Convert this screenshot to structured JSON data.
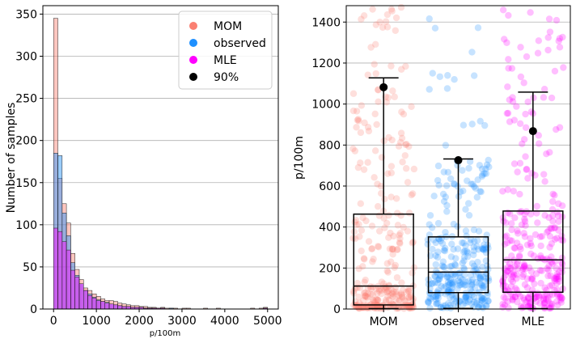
{
  "chart_data": [
    {
      "type": "histogram",
      "title": "",
      "xlabel": "p/100m",
      "ylabel": "Number of samples",
      "xlim": [
        -250,
        5250
      ],
      "ylim": [
        0,
        360
      ],
      "xticks": [
        0,
        1000,
        2000,
        3000,
        4000,
        5000
      ],
      "yticks": [
        0,
        50,
        100,
        150,
        200,
        250,
        300,
        350
      ],
      "grid": "y",
      "legend_position": "top-right",
      "bin_width": 100,
      "bin_starts": [
        0,
        100,
        200,
        300,
        400,
        500,
        600,
        700,
        800,
        900,
        1000,
        1100,
        1200,
        1300,
        1400,
        1500,
        1600,
        1700,
        1800,
        1900,
        2000,
        2100,
        2200,
        2300,
        2400,
        2500,
        2600,
        2700,
        2800,
        2900,
        3000,
        3100,
        3200,
        3300,
        3400,
        3500,
        3600,
        3700,
        3800,
        3900,
        4000,
        4100,
        4200,
        4300,
        4400,
        4500,
        4600,
        4700,
        4800,
        4900
      ],
      "series": [
        {
          "name": "MOM",
          "color": "#fa8072",
          "values": [
            345,
            155,
            125,
            102,
            66,
            47,
            35,
            25,
            22,
            18,
            15,
            12,
            10,
            10,
            9,
            7,
            6,
            5,
            4,
            4,
            3,
            3,
            2,
            2,
            1,
            2,
            1,
            1,
            1,
            0,
            1,
            1,
            0,
            0,
            0,
            1,
            0,
            0,
            1,
            0,
            0,
            0,
            0,
            0,
            0,
            0,
            1,
            0,
            1,
            2
          ]
        },
        {
          "name": "observed",
          "color": "#1e90ff",
          "values": [
            185,
            182,
            114,
            87,
            55,
            40,
            30,
            22,
            18,
            14,
            11,
            9,
            8,
            6,
            5,
            4,
            3,
            3,
            2,
            2,
            2,
            1,
            1,
            1,
            0,
            1,
            0,
            1,
            0,
            0,
            0,
            0,
            0,
            0,
            0,
            0,
            0,
            0,
            0,
            0,
            0,
            0,
            0,
            0,
            0,
            0,
            0,
            0,
            0,
            1
          ]
        },
        {
          "name": "MLE",
          "color": "#ff00ff",
          "values": [
            96,
            92,
            80,
            70,
            46,
            38,
            30,
            22,
            16,
            13,
            10,
            9,
            7,
            6,
            5,
            4,
            3,
            3,
            2,
            2,
            2,
            1,
            1,
            1,
            1,
            1,
            0,
            0,
            0,
            0,
            0,
            0,
            0,
            0,
            0,
            0,
            0,
            0,
            0,
            0,
            0,
            0,
            0,
            0,
            0,
            0,
            0,
            0,
            0,
            1
          ]
        }
      ],
      "legend": [
        {
          "label": "MOM",
          "color": "#fa8072"
        },
        {
          "label": "observed",
          "color": "#1e90ff"
        },
        {
          "label": "MLE",
          "color": "#ff00ff"
        },
        {
          "label": "90%",
          "color": "#000000"
        }
      ]
    },
    {
      "type": "box-strip",
      "ylabel": "p/100m",
      "ylim": [
        0,
        1480
      ],
      "yticks": [
        0,
        200,
        400,
        600,
        800,
        1000,
        1200,
        1400
      ],
      "grid": "y",
      "categories": [
        "MOM",
        "observed",
        "MLE"
      ],
      "boxes": [
        {
          "name": "MOM",
          "color": "#fa8072",
          "whislo": 2,
          "q1": 20,
          "median": 112,
          "q3": 463,
          "whishi": 1128,
          "p90": 1082
        },
        {
          "name": "observed",
          "color": "#1e90ff",
          "whislo": 3,
          "q1": 80,
          "median": 180,
          "q3": 352,
          "whishi": 732,
          "p90": 726
        },
        {
          "name": "MLE",
          "color": "#ff00ff",
          "whislo": 2,
          "q1": 82,
          "median": 240,
          "q3": 478,
          "whishi": 1058,
          "p90": 868
        }
      ]
    }
  ]
}
